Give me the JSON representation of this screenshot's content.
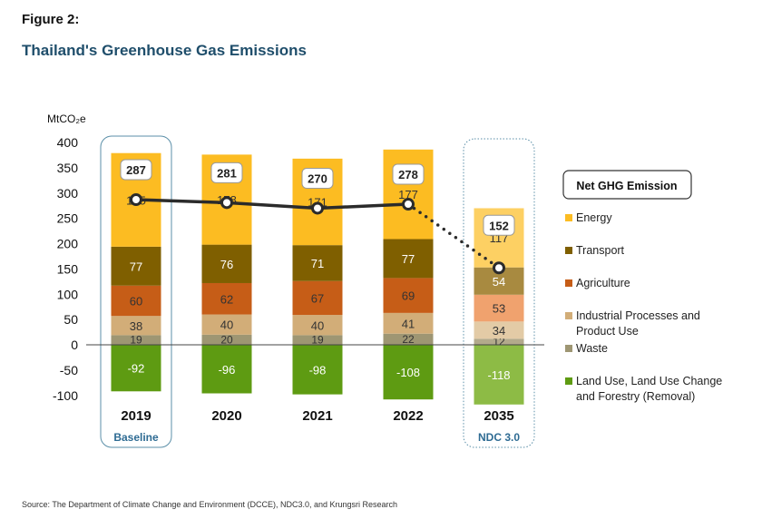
{
  "header": {
    "figure_label": "Figure 2:",
    "title": "Thailand's Greenhouse Gas Emissions"
  },
  "source": "Source: The Department of Climate Change and Environment (DCCE), NDC3.0, and Krungsri Research",
  "chart_data": {
    "type": "bar",
    "stacked": true,
    "ylabel": "MtCO₂e",
    "ylim": [
      -100,
      400
    ],
    "yticks": [
      400,
      350,
      300,
      250,
      200,
      150,
      100,
      50,
      0,
      -50,
      -100
    ],
    "grid": false,
    "legend_position": "right",
    "categories": [
      "2019",
      "2020",
      "2021",
      "2022",
      "2035"
    ],
    "category_notes": {
      "2019": "Baseline",
      "2035": "NDC 3.0"
    },
    "series": [
      {
        "name": "Waste",
        "values": [
          19,
          20,
          19,
          22,
          12
        ],
        "color": "#9e9673",
        "color_projected": "#b3aa8c",
        "label_color": "#333333"
      },
      {
        "name": "Industrial Processes and Product Use",
        "values": [
          38,
          40,
          40,
          41,
          34
        ],
        "color": "#d2ad78",
        "color_projected": "#e3cba6",
        "label_color": "#333333"
      },
      {
        "name": "Agriculture",
        "values": [
          60,
          62,
          67,
          69,
          53
        ],
        "color": "#c65d17",
        "color_projected": "#f0a26e",
        "label_color": "#333333"
      },
      {
        "name": "Transport",
        "values": [
          77,
          76,
          71,
          77,
          54
        ],
        "color": "#7f5f00",
        "color_projected": "#a88a40",
        "label_color": "#ffffff"
      },
      {
        "name": "Energy",
        "values": [
          185,
          178,
          171,
          177,
          117
        ],
        "color": "#fcbc22",
        "color_projected": "#fdd063",
        "label_color": "#333333"
      },
      {
        "name": "Land Use, Land Use Change and Forestry (Removal)",
        "values": [
          -92,
          -96,
          -98,
          -108,
          -118
        ],
        "color": "#5e9b12",
        "color_projected": "#8dbb45",
        "label_color": "#ffffff"
      }
    ],
    "net": {
      "name": "Net GHG Emission",
      "values": [
        287,
        281,
        270,
        278,
        152
      ],
      "color": "#2b2b2b"
    },
    "legend": [
      "Energy",
      "Transport",
      "Agriculture",
      "Industrial Processes and Product Use",
      "Waste",
      "Land Use, Land Use Change and Forestry (Removal)"
    ]
  }
}
